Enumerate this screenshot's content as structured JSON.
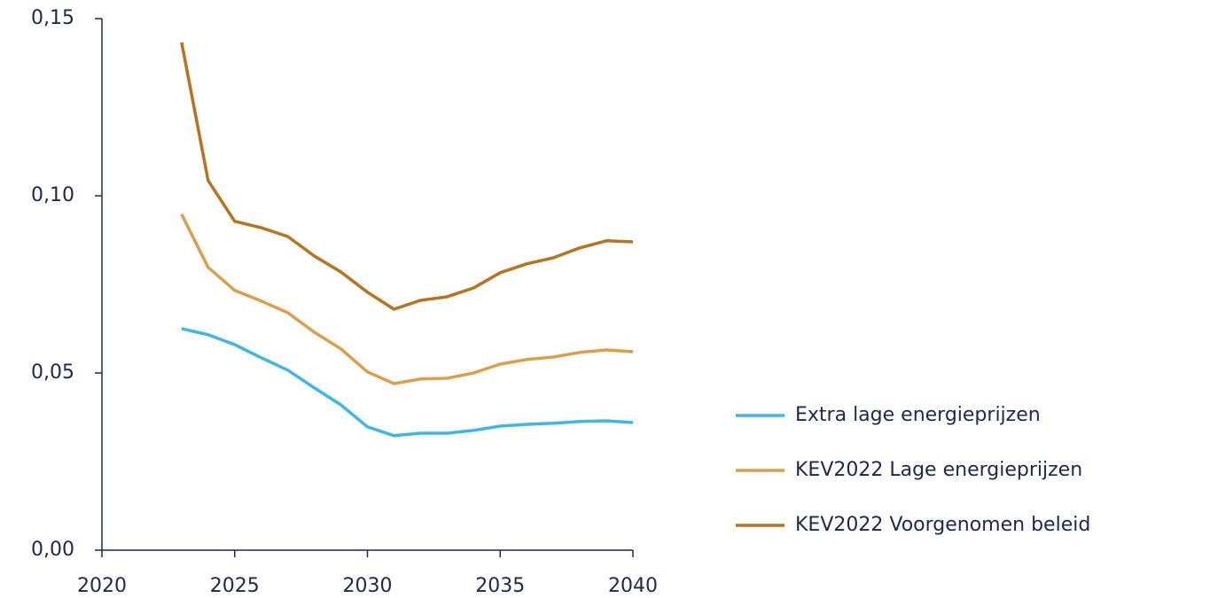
{
  "chart_data": {
    "type": "line",
    "x": [
      2023,
      2024,
      2025,
      2026,
      2027,
      2028,
      2029,
      2030,
      2031,
      2032,
      2033,
      2034,
      2035,
      2036,
      2037,
      2038,
      2039,
      2040
    ],
    "series": [
      {
        "name": "Extra lage energieprijzen",
        "color": "#41b6e6",
        "values": [
          0.0625,
          0.0608,
          0.058,
          0.0543,
          0.0508,
          0.0458,
          0.041,
          0.0348,
          0.0323,
          0.033,
          0.033,
          0.0338,
          0.035,
          0.0355,
          0.0358,
          0.0363,
          0.0365,
          0.036
        ]
      },
      {
        "name": "KEV2022 Lage energieprijzen",
        "color": "#d9a04c",
        "values": [
          0.0948,
          0.0798,
          0.0733,
          0.0703,
          0.067,
          0.0615,
          0.0568,
          0.0503,
          0.047,
          0.0483,
          0.0485,
          0.05,
          0.0525,
          0.0538,
          0.0545,
          0.0558,
          0.0565,
          0.056
        ]
      },
      {
        "name": "KEV2022 Voorgenomen beleid",
        "color": "#b8731e",
        "values": [
          0.1433,
          0.1043,
          0.0928,
          0.091,
          0.0885,
          0.083,
          0.0785,
          0.0728,
          0.068,
          0.0705,
          0.0715,
          0.074,
          0.0783,
          0.0808,
          0.0825,
          0.0853,
          0.0873,
          0.087
        ]
      }
    ],
    "xlim": [
      2020,
      2040
    ],
    "xticks": [
      2020,
      2025,
      2030,
      2035,
      2040
    ],
    "ylim": [
      0,
      0.15
    ],
    "yticks": [
      {
        "value": 0,
        "label": "0,00"
      },
      {
        "value": 0.05,
        "label": "0,05"
      },
      {
        "value": 0.1,
        "label": "0,10"
      },
      {
        "value": 0.15,
        "label": "0,15"
      }
    ],
    "legend": "right"
  }
}
